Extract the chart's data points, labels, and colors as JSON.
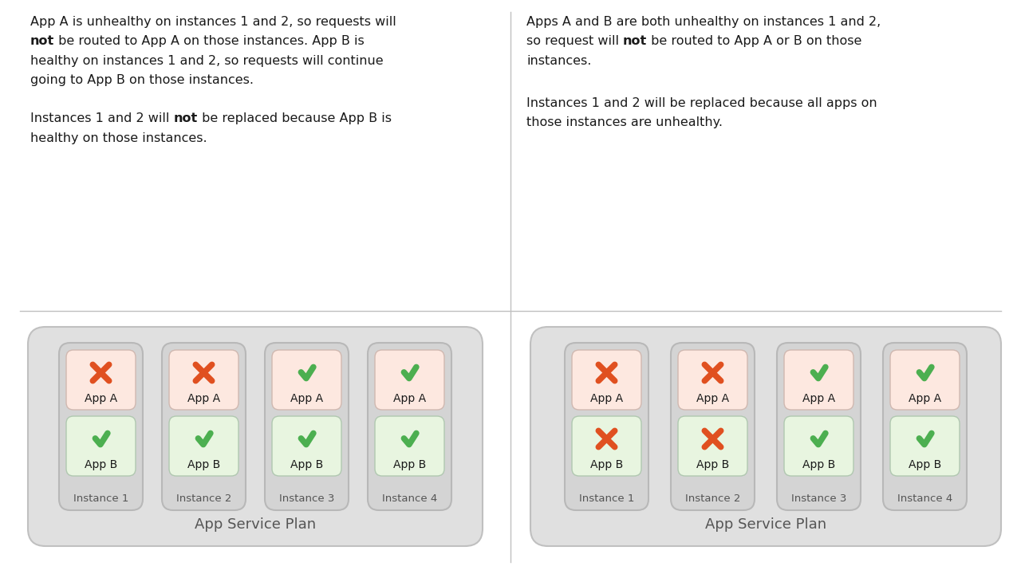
{
  "bg_color": "#ffffff",
  "divider_color": "#c0c0c0",
  "instance_bg": "#d4d4d4",
  "app_a_bg": "#fde8e0",
  "app_b_bg": "#e8f5e0",
  "healthy_color": "#4caf50",
  "unhealthy_color": "#e05020",
  "text_color": "#1a1a1a",
  "label_color": "#555555",
  "service_plan_bg": "#e0e0e0",
  "service_plan_border": "#c0c0c0",
  "instance_border": "#b8b8b8",
  "app_border_a": "#d0b8b0",
  "app_border_b": "#b0c8b0",
  "left_instances": [
    {
      "name": "Instance 1",
      "app_a_healthy": false,
      "app_b_healthy": true
    },
    {
      "name": "Instance 2",
      "app_a_healthy": false,
      "app_b_healthy": true
    },
    {
      "name": "Instance 3",
      "app_a_healthy": true,
      "app_b_healthy": true
    },
    {
      "name": "Instance 4",
      "app_a_healthy": true,
      "app_b_healthy": true
    }
  ],
  "right_instances": [
    {
      "name": "Instance 1",
      "app_a_healthy": false,
      "app_b_healthy": false
    },
    {
      "name": "Instance 2",
      "app_a_healthy": false,
      "app_b_healthy": false
    },
    {
      "name": "Instance 3",
      "app_a_healthy": true,
      "app_b_healthy": true
    },
    {
      "name": "Instance 4",
      "app_a_healthy": true,
      "app_b_healthy": true
    }
  ],
  "service_plan_label": "App Service Plan"
}
